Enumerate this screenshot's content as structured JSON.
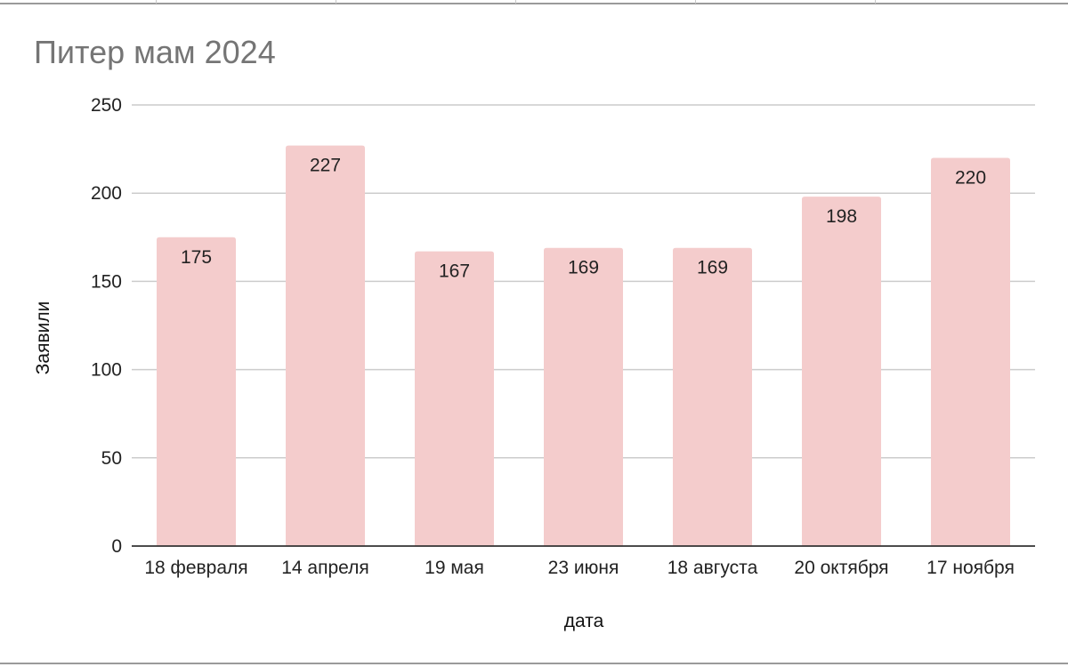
{
  "chart_data": {
    "type": "bar",
    "title": "Питер мам 2024",
    "xlabel": "дата",
    "ylabel": "Заявили",
    "categories": [
      "18 февраля",
      "14 апреля",
      "19 мая",
      "23 июня",
      "18 августа",
      "20 октября",
      "17 ноября"
    ],
    "values": [
      175,
      227,
      167,
      169,
      169,
      198,
      220
    ],
    "ylim": [
      0,
      250
    ],
    "yticks": [
      0,
      50,
      100,
      150,
      200,
      250
    ],
    "grid": true,
    "legend": "none",
    "data_labels": true,
    "colors": {
      "bar": "#f4cccc",
      "gridline": "#cccccc",
      "axis": "#333333",
      "title": "#757575"
    }
  }
}
